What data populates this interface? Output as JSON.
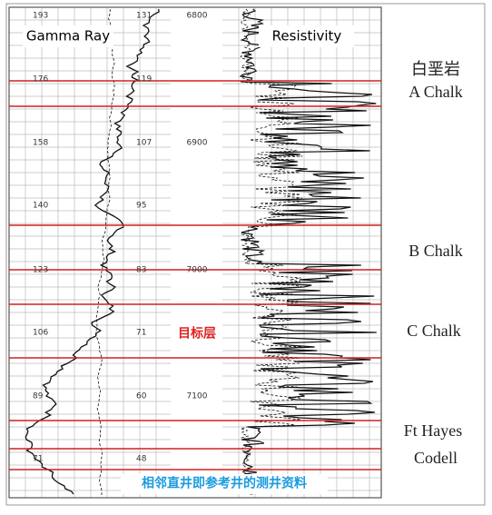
{
  "header": {
    "left_curve": "Gamma Ray",
    "right_curve": "Resistivity"
  },
  "depth_labels": [
    "6800",
    "6900",
    "7000",
    "7100"
  ],
  "gr_scale_left": [
    "193",
    "176",
    "158",
    "140",
    "123",
    "106",
    "89",
    "71"
  ],
  "gr_scale_right": [
    "131",
    "119",
    "107",
    "95",
    "83",
    "71",
    "60",
    "48"
  ],
  "zones": [
    "白垩岩",
    "A Chalk",
    "B Chalk",
    "C Chalk",
    "Ft Hayes",
    "Codell"
  ],
  "target": "目标层",
  "caption": "相邻直井即参考井的测井资料"
}
